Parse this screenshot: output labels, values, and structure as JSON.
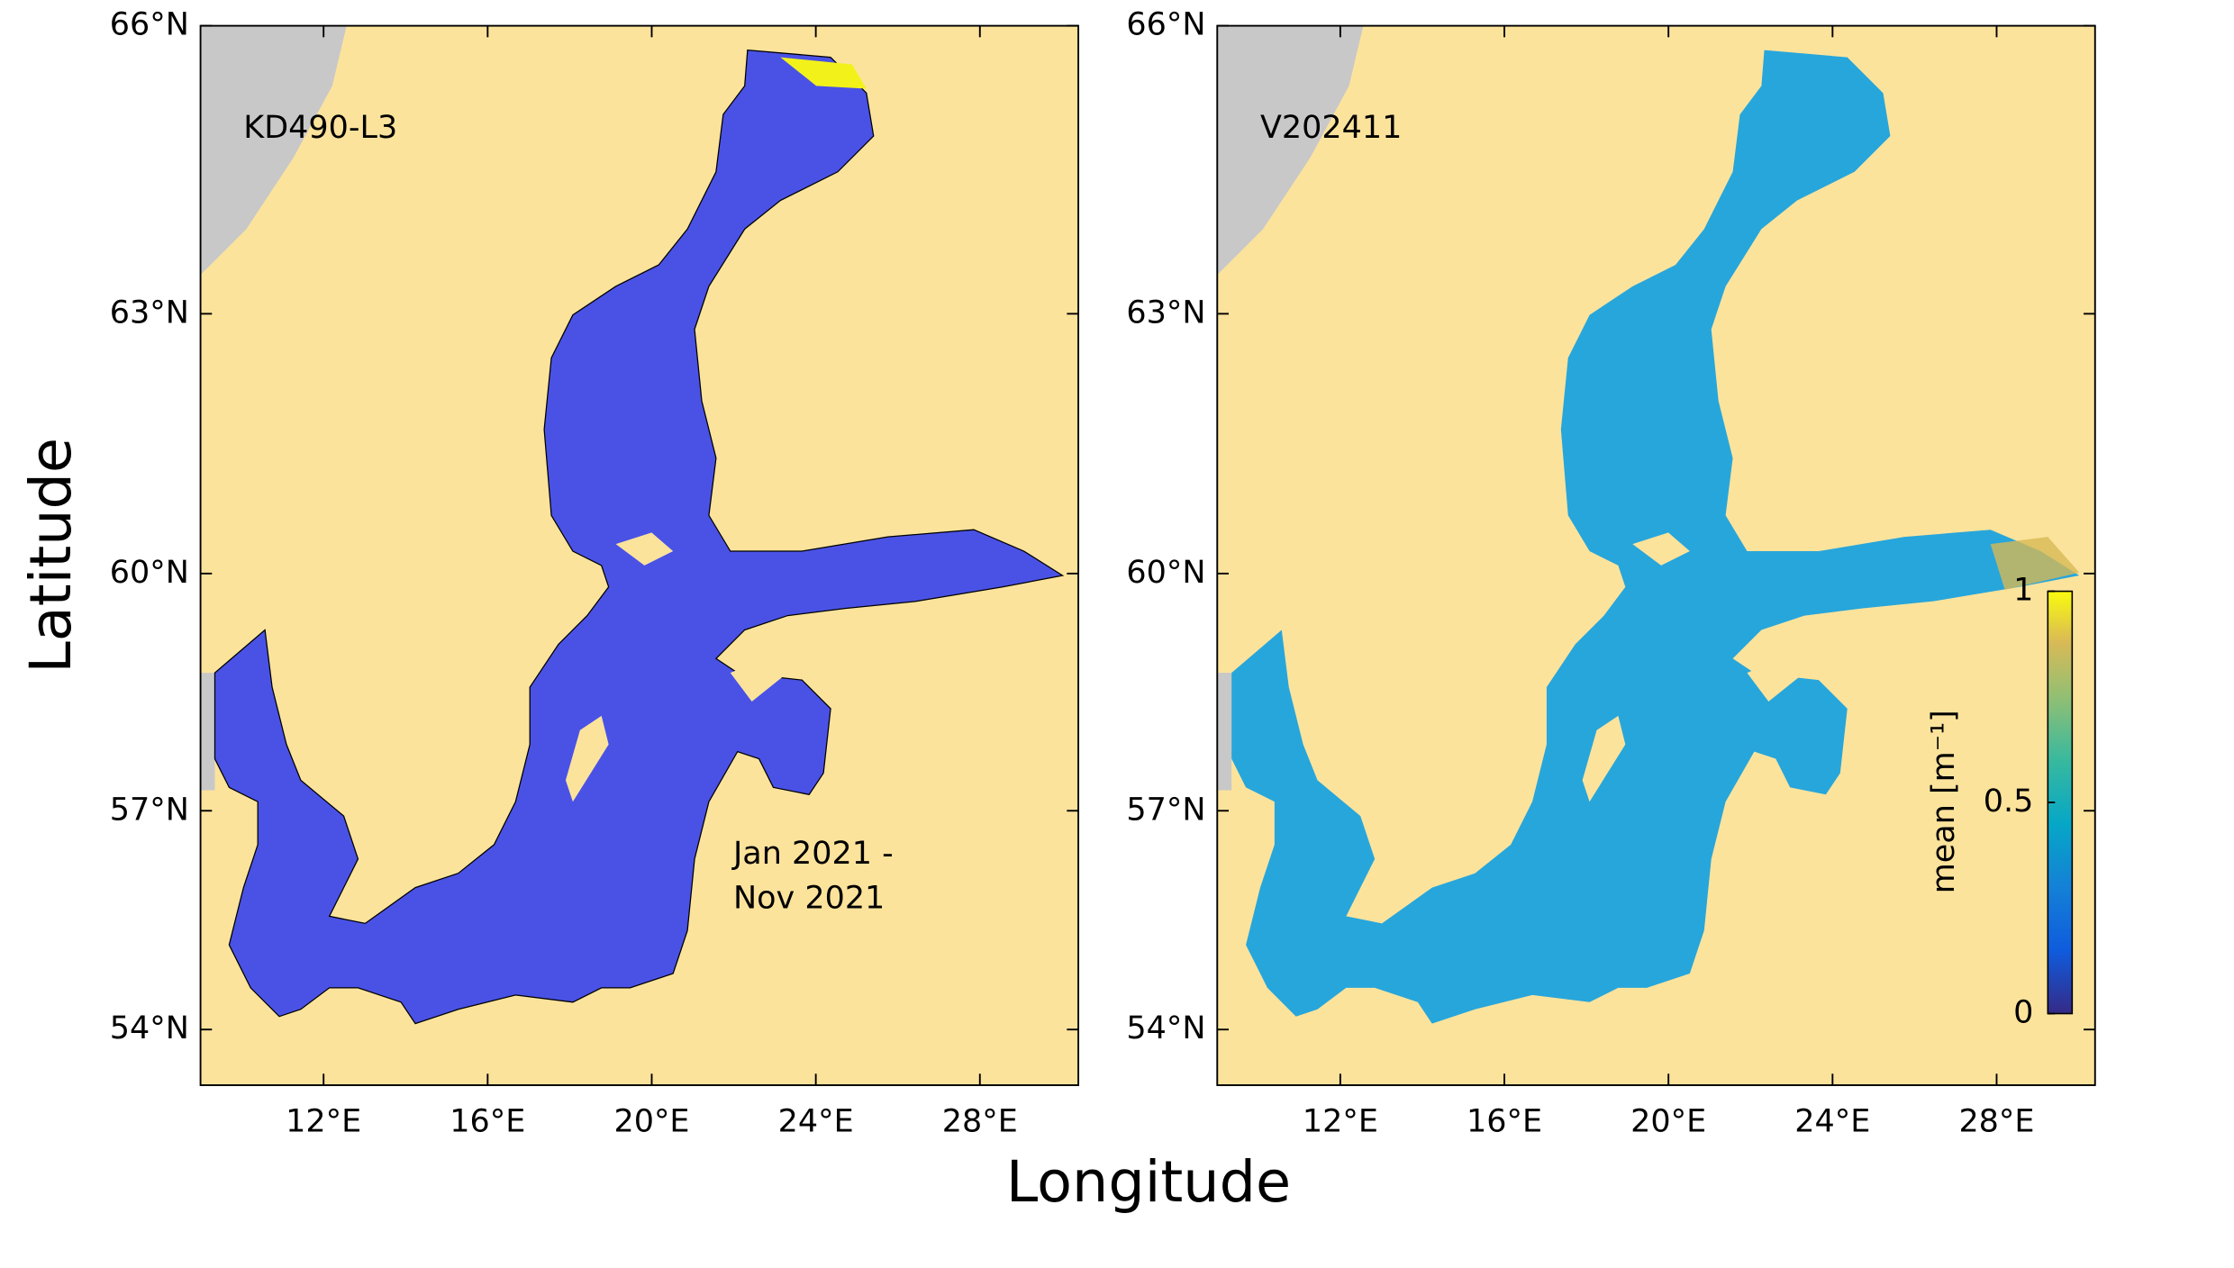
{
  "chart_data": {
    "type": "map",
    "x_label": "Longitude",
    "y_label": "Latitude",
    "projection": "mercator",
    "xlim": [
      9,
      30.4
    ],
    "ylim": [
      53.2,
      66
    ],
    "xticks": [
      {
        "value": 12,
        "label": "12°E"
      },
      {
        "value": 16,
        "label": "16°E"
      },
      {
        "value": 20,
        "label": "20°E"
      },
      {
        "value": 24,
        "label": "24°E"
      },
      {
        "value": 28,
        "label": "28°E"
      }
    ],
    "yticks": [
      {
        "value": 54,
        "label": "54°N"
      },
      {
        "value": 57,
        "label": "57°N"
      },
      {
        "value": 60,
        "label": "60°N"
      },
      {
        "value": 63,
        "label": "63°N"
      },
      {
        "value": 66,
        "label": "66°N"
      }
    ],
    "panels": [
      {
        "label": "KD490-L3",
        "annotation": [
          "Jan 2021 -",
          "Nov 2021"
        ],
        "color": "#4a52e6"
      },
      {
        "label": "V202411",
        "color": "#27a6db"
      }
    ],
    "colorbar": {
      "label": "mean [m⁻¹]",
      "lim": [
        0,
        1
      ],
      "ticks": [
        0,
        0.5,
        1
      ]
    }
  }
}
